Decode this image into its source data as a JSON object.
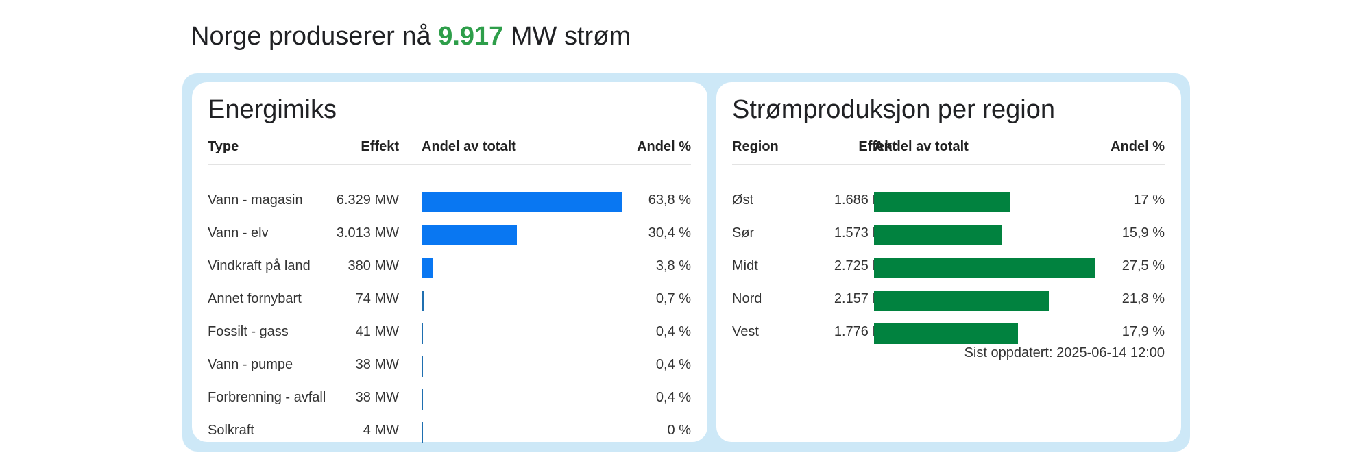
{
  "headline": {
    "prefix": "Norge produserer nå",
    "value": "9.917",
    "suffix": "MW strøm",
    "accent_color": "#2e9e4a"
  },
  "chart_data": [
    {
      "type": "table",
      "title": "Energimiks",
      "columns": [
        "Type",
        "Effekt",
        "Andel av totalt",
        "Andel %"
      ],
      "bar_color": "#0977f2",
      "bar_max_percent": 63.8,
      "rows": [
        {
          "label": "Vann - magasin",
          "effekt": "6.329 MW",
          "value": 63.8,
          "andel": "63,8 %"
        },
        {
          "label": "Vann - elv",
          "effekt": "3.013 MW",
          "value": 30.4,
          "andel": "30,4 %"
        },
        {
          "label": "Vindkraft på land",
          "effekt": "380 MW",
          "value": 3.8,
          "andel": "3,8 %"
        },
        {
          "label": "Annet fornybart",
          "effekt": "74 MW",
          "value": 0.7,
          "andel": "0,7 %"
        },
        {
          "label": "Fossilt - gass",
          "effekt": "41 MW",
          "value": 0.4,
          "andel": "0,4 %"
        },
        {
          "label": "Vann - pumpe",
          "effekt": "38 MW",
          "value": 0.4,
          "andel": "0,4 %"
        },
        {
          "label": "Forbrenning - avfall",
          "effekt": "38 MW",
          "value": 0.4,
          "andel": "0,4 %"
        },
        {
          "label": "Solkraft",
          "effekt": "4 MW",
          "value": 0,
          "andel": "0 %"
        }
      ]
    },
    {
      "type": "table",
      "title": "Strømproduksjon per region",
      "columns": [
        "Region",
        "Effekt",
        "Andel av totalt",
        "Andel %"
      ],
      "bar_color": "#01823f",
      "bar_max_percent": 27.5,
      "rows": [
        {
          "label": "Øst",
          "effekt": "1.686 MW",
          "value": 17,
          "andel": "17 %"
        },
        {
          "label": "Sør",
          "effekt": "1.573 MW",
          "value": 15.9,
          "andel": "15,9 %"
        },
        {
          "label": "Midt",
          "effekt": "2.725 MW",
          "value": 27.5,
          "andel": "27,5 %"
        },
        {
          "label": "Nord",
          "effekt": "2.157 MW",
          "value": 21.8,
          "andel": "21,8 %"
        },
        {
          "label": "Vest",
          "effekt": "1.776 MW",
          "value": 17.9,
          "andel": "17,9 %"
        }
      ],
      "footer": "Sist oppdatert: 2025-06-14 12:00"
    }
  ]
}
